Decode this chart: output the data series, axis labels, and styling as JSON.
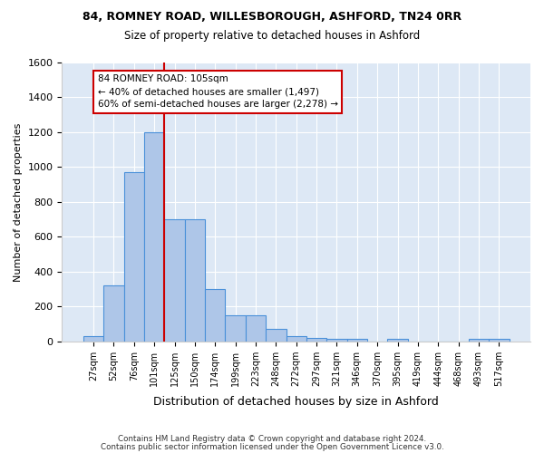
{
  "title1": "84, ROMNEY ROAD, WILLESBOROUGH, ASHFORD, TN24 0RR",
  "title2": "Size of property relative to detached houses in Ashford",
  "xlabel": "Distribution of detached houses by size in Ashford",
  "ylabel": "Number of detached properties",
  "bar_values": [
    30,
    320,
    970,
    1200,
    700,
    700,
    300,
    150,
    150,
    70,
    30,
    20,
    15,
    15,
    0,
    15,
    0,
    0,
    0,
    15,
    15
  ],
  "categories": [
    "27sqm",
    "52sqm",
    "76sqm",
    "101sqm",
    "125sqm",
    "150sqm",
    "174sqm",
    "199sqm",
    "223sqm",
    "248sqm",
    "272sqm",
    "297sqm",
    "321sqm",
    "346sqm",
    "370sqm",
    "395sqm",
    "419sqm",
    "444sqm",
    "468sqm",
    "493sqm",
    "517sqm"
  ],
  "bar_color": "#aec6e8",
  "bar_edge_color": "#4a90d9",
  "reference_line_color": "#cc0000",
  "annotation_line1": "84 ROMNEY ROAD: 105sqm",
  "annotation_line2": "← 40% of detached houses are smaller (1,497)",
  "annotation_line3": "60% of semi-detached houses are larger (2,278) →",
  "annotation_box_edge_color": "#cc0000",
  "ylim": [
    0,
    1600
  ],
  "yticks": [
    0,
    200,
    400,
    600,
    800,
    1000,
    1200,
    1400,
    1600
  ],
  "bg_color": "#dde8f5",
  "footer1": "Contains HM Land Registry data © Crown copyright and database right 2024.",
  "footer2": "Contains public sector information licensed under the Open Government Licence v3.0."
}
